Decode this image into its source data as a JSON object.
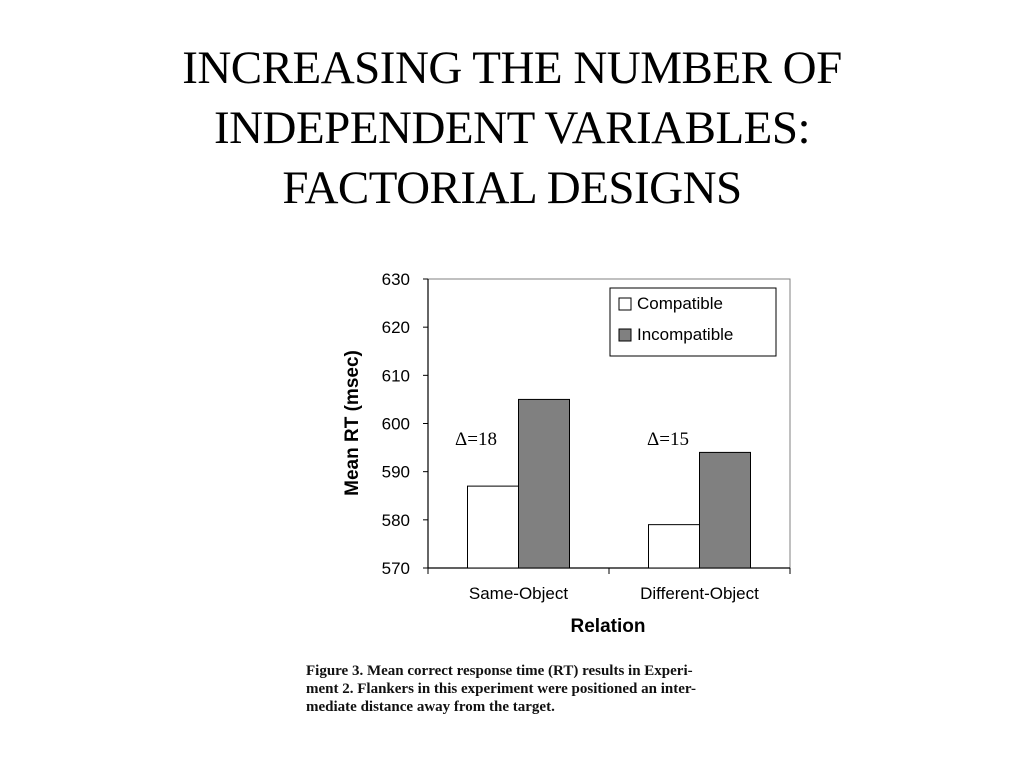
{
  "slide": {
    "title_lines": [
      "INCREASING THE NUMBER OF",
      "INDEPENDENT VARIABLES:",
      "FACTORIAL DESIGNS"
    ]
  },
  "chart_data": {
    "type": "bar",
    "categories": [
      "Same-Object",
      "Different-Object"
    ],
    "series": [
      {
        "name": "Compatible",
        "values": [
          587,
          579
        ],
        "color": "#ffffff"
      },
      {
        "name": "Incompatible",
        "values": [
          605,
          594
        ],
        "color": "#808080"
      }
    ],
    "xlabel": "Relation",
    "ylabel": "Mean RT (msec)",
    "ylim": [
      570,
      630
    ],
    "yticks": [
      570,
      580,
      590,
      600,
      610,
      620,
      630
    ],
    "legend_position": "top-right",
    "grid": false,
    "annotations": [
      "Δ=18",
      "Δ=15"
    ]
  },
  "caption_lines": [
    "Figure 3. Mean correct response time (RT) results in Experi-",
    "ment 2. Flankers in this experiment were positioned an inter-",
    "mediate distance away from the target."
  ]
}
